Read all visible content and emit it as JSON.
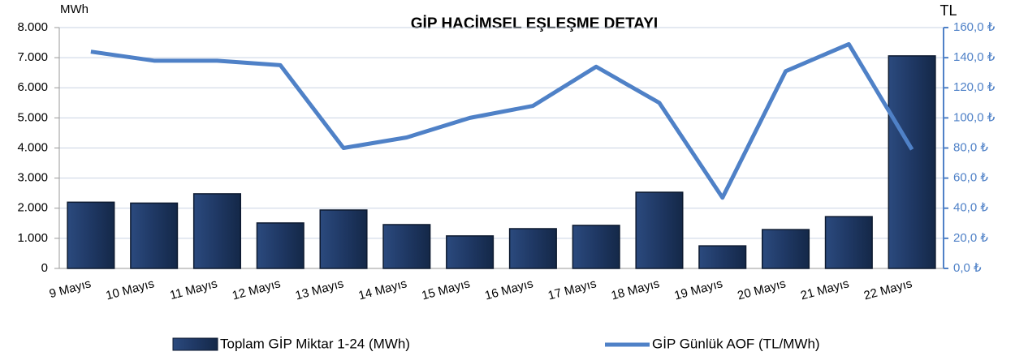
{
  "chart_data": {
    "type": "bar",
    "title": "GİP HACİMSEL EŞLEŞME DETAYI",
    "y_unit": "MWh",
    "y2_unit": "TL",
    "categories": [
      "9 Mayıs",
      "10 Mayıs",
      "11 Mayıs",
      "12 Mayıs",
      "13 Mayıs",
      "14 Mayıs",
      "15 Mayıs",
      "16 Mayıs",
      "17 Mayıs",
      "18 Mayıs",
      "19 Mayıs",
      "20 Mayıs",
      "21 Mayıs",
      "22 Mayıs"
    ],
    "series": [
      {
        "name": "Toplam GİP Miktar 1-24 (MWh)",
        "type": "bar",
        "color": "#1f3864",
        "values": [
          2200,
          2170,
          2480,
          1510,
          1940,
          1455,
          1080,
          1320,
          1430,
          2530,
          750,
          1290,
          1720,
          7060
        ]
      },
      {
        "name": "GİP Günlük AOF (TL/MWh)",
        "type": "line",
        "axis": "y2",
        "color": "#4f81c7",
        "values": [
          144,
          138,
          138,
          135,
          80,
          87,
          100,
          108,
          134,
          110,
          47,
          131,
          149,
          79
        ]
      }
    ],
    "ylim": [
      0,
      8000
    ],
    "yticks": [
      0,
      {
        "value": 1000,
        "label": "1.000"
      },
      {
        "value": 2000,
        "label": "2.000"
      },
      {
        "value": 3000,
        "label": "3.000"
      },
      {
        "value": 4000,
        "label": "4.000"
      },
      {
        "value": 5000,
        "label": "5.000"
      },
      {
        "value": 6000,
        "label": "6.000"
      },
      {
        "value": 7000,
        "label": "7.000"
      },
      {
        "value": 8000,
        "label": "8.000"
      }
    ],
    "y2lim": [
      0,
      160
    ],
    "y2ticks": [
      {
        "value": 0,
        "label": "0,0 ₺"
      },
      {
        "value": 20,
        "label": "20,0 ₺"
      },
      {
        "value": 40,
        "label": "40,0 ₺"
      },
      {
        "value": 60,
        "label": "60,0 ₺"
      },
      {
        "value": 80,
        "label": "80,0 ₺"
      },
      {
        "value": 100,
        "label": "100,0 ₺"
      },
      {
        "value": 120,
        "label": "120,0 ₺"
      },
      {
        "value": 140,
        "label": "140,0 ₺"
      },
      {
        "value": 160,
        "label": "160,0 ₺"
      }
    ],
    "grid": true
  }
}
